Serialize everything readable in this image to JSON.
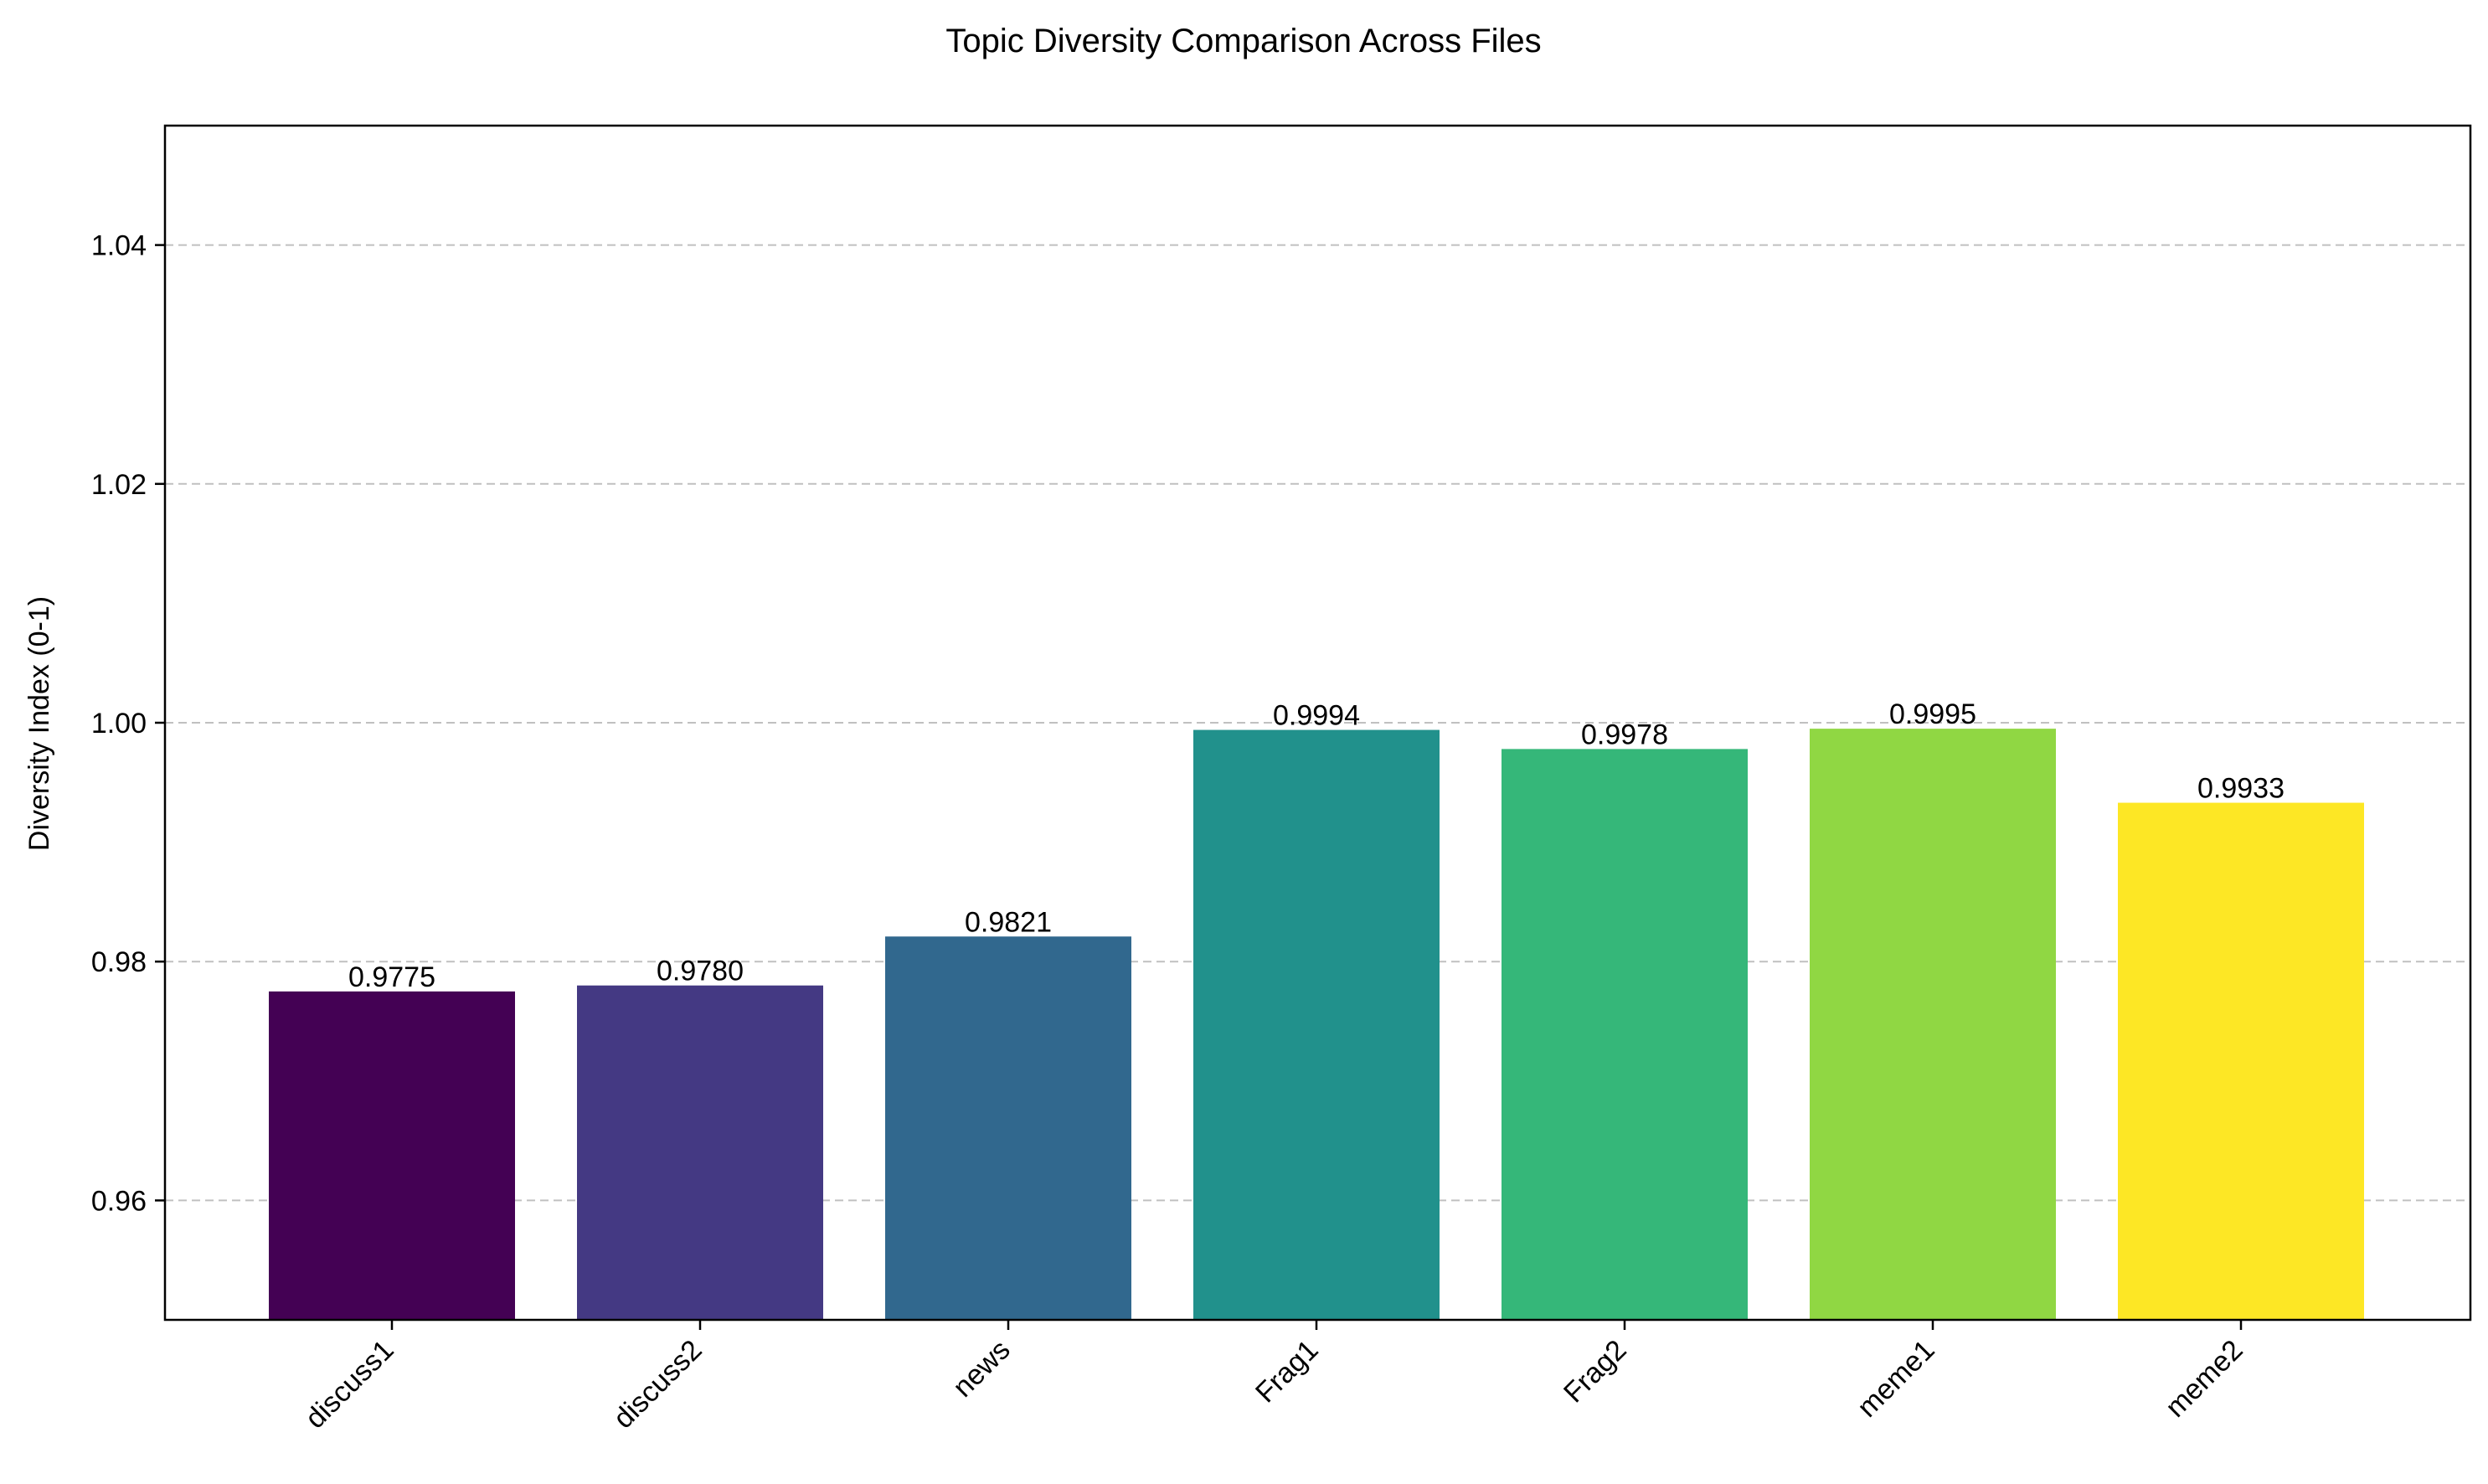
{
  "chart_data": {
    "type": "bar",
    "title": "Topic Diversity Comparison Across Files",
    "xlabel": "",
    "ylabel": "Diversity Index (0-1)",
    "categories": [
      "discuss1",
      "discuss2",
      "news",
      "Frag1",
      "Frag2",
      "meme1",
      "meme2"
    ],
    "values": [
      0.9775,
      0.978,
      0.9821,
      0.9994,
      0.9978,
      0.9995,
      0.9933
    ],
    "value_labels": [
      "0.9775",
      "0.9780",
      "0.9821",
      "0.9994",
      "0.9978",
      "0.9995",
      "0.9933"
    ],
    "colors": [
      "#440154",
      "#443983",
      "#31688e",
      "#21918c",
      "#35b779",
      "#90d743",
      "#fde725"
    ],
    "ylim": [
      0.95,
      1.05
    ],
    "yticks": [
      0.96,
      0.98,
      1.0,
      1.02,
      1.04
    ],
    "ytick_labels": [
      "0.96",
      "0.98",
      "1.00",
      "1.02",
      "1.04"
    ],
    "grid": "y-dashed",
    "legend": "none"
  }
}
